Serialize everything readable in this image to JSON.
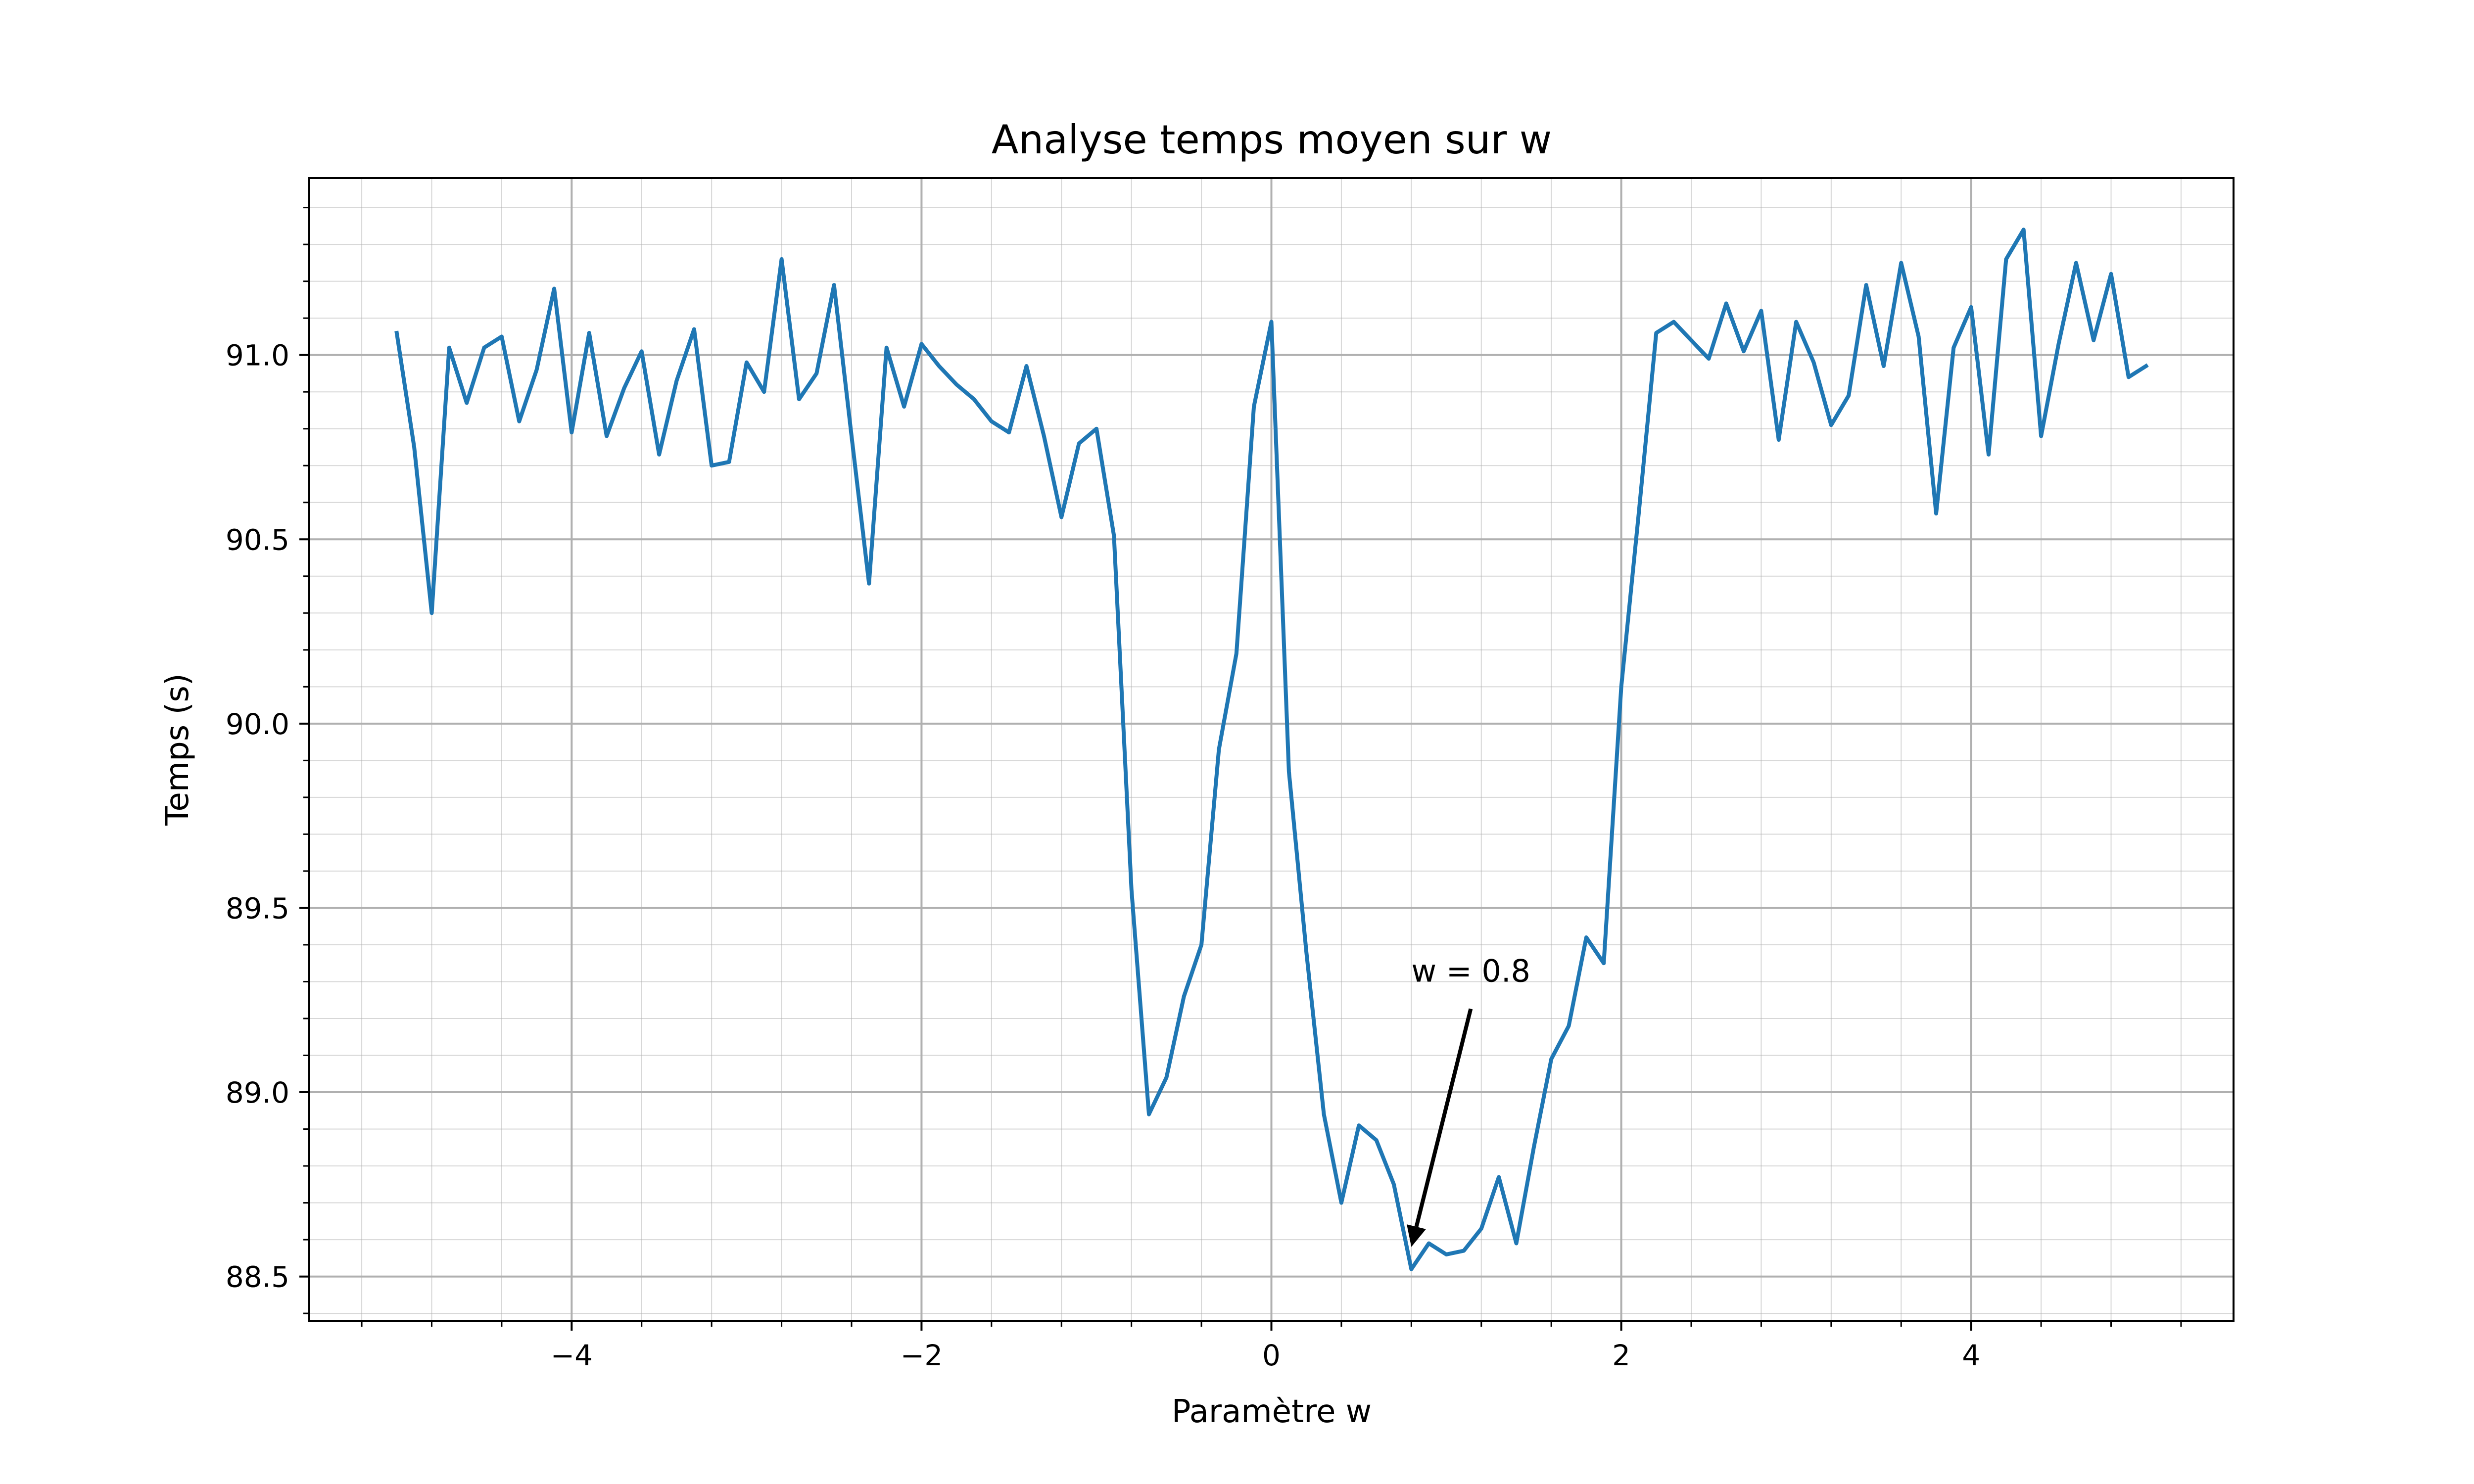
{
  "chart_data": {
    "type": "line",
    "title": "Analyse temps moyen sur w",
    "xlabel": "Paramètre w",
    "ylabel": "Temps (s)",
    "xlim": [
      -5.5,
      5.5
    ],
    "ylim": [
      88.38,
      91.48
    ],
    "grid": true,
    "minor_grid": true,
    "x_ticks": [
      {
        "value": -4,
        "label": "−4"
      },
      {
        "value": -2,
        "label": "−2"
      },
      {
        "value": 0,
        "label": "0"
      },
      {
        "value": 2,
        "label": "2"
      },
      {
        "value": 4,
        "label": "4"
      }
    ],
    "y_ticks": [
      {
        "value": 88.5,
        "label": "88.5"
      },
      {
        "value": 89.0,
        "label": "89.0"
      },
      {
        "value": 89.5,
        "label": "89.5"
      },
      {
        "value": 90.0,
        "label": "90.0"
      },
      {
        "value": 90.5,
        "label": "90.5"
      },
      {
        "value": 91.0,
        "label": "91.0"
      }
    ],
    "line_color": "#1f77b4",
    "series": [
      {
        "x": [
          -5.0,
          -4.9,
          -4.8,
          -4.7,
          -4.6,
          -4.5,
          -4.4,
          -4.3,
          -4.2,
          -4.1,
          -4.0,
          -3.9,
          -3.8,
          -3.7,
          -3.6,
          -3.5,
          -3.4,
          -3.3,
          -3.2,
          -3.1,
          -3.0,
          -2.9,
          -2.8,
          -2.7,
          -2.6,
          -2.5,
          -2.4,
          -2.3,
          -2.2,
          -2.1,
          -2.0,
          -1.9,
          -1.8,
          -1.7,
          -1.6,
          -1.5,
          -1.4,
          -1.3,
          -1.2,
          -1.1,
          -1.0,
          -0.9,
          -0.8,
          -0.7,
          -0.6,
          -0.5,
          -0.4,
          -0.3,
          -0.2,
          -0.1,
          0.0,
          0.1,
          0.2,
          0.3,
          0.4,
          0.5,
          0.6,
          0.7,
          0.8,
          0.9,
          1.0,
          1.1,
          1.2,
          1.3,
          1.4,
          1.5,
          1.6,
          1.7,
          1.8,
          1.9,
          2.0,
          2.1,
          2.2,
          2.3,
          2.4,
          2.5,
          2.6,
          2.7,
          2.8,
          2.9,
          3.0,
          3.1,
          3.2,
          3.3,
          3.4,
          3.5,
          3.6,
          3.7,
          3.8,
          3.9,
          4.0,
          4.1,
          4.2,
          4.3,
          4.4,
          4.5,
          4.6,
          4.7,
          4.8,
          4.9,
          5.0
        ],
        "y": [
          91.06,
          90.75,
          90.3,
          91.02,
          90.87,
          91.02,
          91.05,
          90.82,
          90.96,
          91.18,
          90.79,
          91.06,
          90.78,
          90.91,
          91.01,
          90.73,
          90.93,
          91.07,
          90.7,
          90.71,
          90.98,
          90.9,
          91.26,
          90.88,
          90.95,
          91.19,
          90.78,
          90.38,
          91.02,
          90.86,
          91.03,
          90.97,
          90.92,
          90.88,
          90.82,
          90.79,
          90.97,
          90.78,
          90.56,
          90.76,
          90.8,
          90.51,
          89.55,
          88.94,
          89.04,
          89.26,
          89.4,
          89.93,
          90.19,
          90.86,
          91.09,
          89.87,
          89.38,
          88.94,
          88.7,
          88.91,
          88.87,
          88.75,
          88.52,
          88.59,
          88.56,
          88.57,
          88.63,
          88.77,
          88.59,
          88.85,
          89.09,
          89.18,
          89.42,
          89.35,
          90.1,
          90.57,
          91.06,
          91.09,
          91.04,
          90.99,
          91.14,
          91.01,
          91.12,
          90.77,
          91.09,
          90.98,
          90.81,
          90.89,
          91.19,
          90.97,
          91.25,
          91.05,
          90.57,
          91.02,
          91.13,
          90.73,
          91.26,
          91.34,
          90.78,
          91.03,
          91.25,
          91.04,
          91.22,
          90.94,
          90.97
        ]
      }
    ],
    "annotation": {
      "text": "w = 0.8",
      "x": 0.8,
      "y": 88.52,
      "text_x": 0.8,
      "text_y": 89.3
    }
  }
}
